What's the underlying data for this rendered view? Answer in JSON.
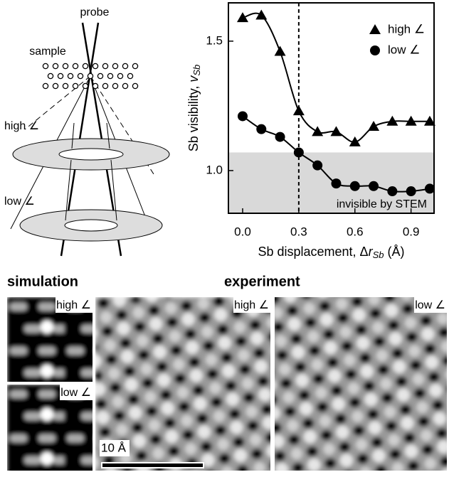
{
  "diagram": {
    "probe": "probe",
    "sample": "sample",
    "high": "high ∠",
    "low": "low ∠"
  },
  "chart_data": {
    "type": "scatter",
    "xlabel": [
      "Sb displacement, Δ",
      "r",
      "Sb",
      " (Å)"
    ],
    "ylabel": [
      "Sb visibility, ",
      "v",
      "Sb"
    ],
    "x": [
      0.0,
      0.1,
      0.2,
      0.3,
      0.4,
      0.5,
      0.6,
      0.7,
      0.8,
      0.9,
      1.0
    ],
    "series": [
      {
        "name": "high ∠",
        "color": "#000000",
        "marker": "triangle",
        "values": [
          1.59,
          1.6,
          1.46,
          1.23,
          1.15,
          1.15,
          1.11,
          1.17,
          1.19,
          1.19,
          1.19
        ]
      },
      {
        "name": "low ∠",
        "color": "#000000",
        "marker": "circle",
        "values": [
          1.21,
          1.16,
          1.13,
          1.07,
          1.02,
          0.95,
          0.94,
          0.94,
          0.92,
          0.92,
          0.93
        ]
      }
    ],
    "xlim": [
      -0.076,
      1.023
    ],
    "ylim": [
      0.835,
      1.648
    ],
    "xticks": [
      {
        "value": 0,
        "label": "0.0"
      },
      0.3,
      0.6,
      0.9
    ],
    "yticks": [
      {
        "value": 1,
        "label": "1.0"
      },
      1.5
    ],
    "vline": 0.3,
    "shade_below": 1.07,
    "shade_color": "#d9d9d9",
    "annotation": "invisible by STEM",
    "legend": "top-right",
    "grid": false
  },
  "images": {
    "simulation": "simulation",
    "experiment": "experiment",
    "sim_high": "high ∠",
    "sim_low": "low ∠",
    "exp_high": "high ∠",
    "exp_low": "low ∠",
    "scale": "10 Å"
  }
}
